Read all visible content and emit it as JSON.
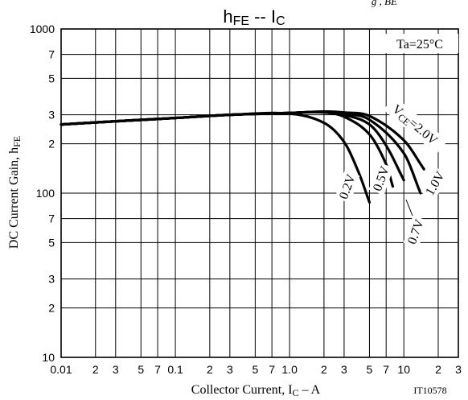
{
  "chart_data": {
    "type": "line",
    "title_main": "h",
    "title_main_sub": "FE",
    "title_sep": " -- ",
    "title_main2": "I",
    "title_main2_sub": "C",
    "title_overflow": "g , BE",
    "xlabel_pre": "Collector Current, I",
    "xlabel_sub": "C",
    "xlabel_post": "  –  A",
    "ylabel_pre": "DC Current Gain, h",
    "ylabel_sub": "FE",
    "figure_id": "IT10578",
    "condition": "Ta=25°C",
    "x_scale": "log",
    "y_scale": "log",
    "xlim": [
      0.01,
      30
    ],
    "ylim": [
      10,
      1000
    ],
    "grid": true,
    "x_tick_labels": [
      {
        "v": 0.01,
        "t": "0.01"
      },
      {
        "v": 0.02,
        "t": "2"
      },
      {
        "v": 0.03,
        "t": "3"
      },
      {
        "v": 0.05,
        "t": "5"
      },
      {
        "v": 0.07,
        "t": "7"
      },
      {
        "v": 0.1,
        "t": "0.1"
      },
      {
        "v": 0.2,
        "t": "2"
      },
      {
        "v": 0.3,
        "t": "3"
      },
      {
        "v": 0.5,
        "t": "5"
      },
      {
        "v": 0.7,
        "t": "7"
      },
      {
        "v": 1,
        "t": "1.0"
      },
      {
        "v": 2,
        "t": "2"
      },
      {
        "v": 3,
        "t": "3"
      },
      {
        "v": 5,
        "t": "5"
      },
      {
        "v": 7,
        "t": "7"
      },
      {
        "v": 10,
        "t": "10"
      },
      {
        "v": 20,
        "t": "2"
      },
      {
        "v": 30,
        "t": "3"
      }
    ],
    "y_tick_labels": [
      {
        "v": 10,
        "t": "10"
      },
      {
        "v": 20,
        "t": "2"
      },
      {
        "v": 30,
        "t": "3"
      },
      {
        "v": 50,
        "t": "5"
      },
      {
        "v": 70,
        "t": "7"
      },
      {
        "v": 100,
        "t": "100"
      },
      {
        "v": 200,
        "t": "2"
      },
      {
        "v": 300,
        "t": "3"
      },
      {
        "v": 500,
        "t": "5"
      },
      {
        "v": 700,
        "t": "7"
      },
      {
        "v": 1000,
        "t": "1000"
      }
    ],
    "series": [
      {
        "name": "0.2V",
        "x": [
          0.01,
          0.03,
          0.1,
          0.3,
          1,
          2,
          3,
          4,
          5
        ],
        "y": [
          262,
          274,
          287,
          300,
          305,
          268,
          205,
          135,
          88
        ]
      },
      {
        "name": "0.5V",
        "x": [
          0.01,
          0.03,
          0.1,
          0.3,
          1,
          2,
          3,
          5,
          7,
          8
        ],
        "y": [
          262,
          274,
          287,
          300,
          308,
          310,
          292,
          228,
          150,
          110
        ]
      },
      {
        "name": "0.7V",
        "x": [
          0.01,
          0.03,
          0.1,
          0.3,
          1,
          2,
          3,
          5,
          7,
          10
        ],
        "y": [
          262,
          274,
          287,
          300,
          308,
          312,
          300,
          262,
          195,
          120
        ]
      },
      {
        "name": "1.0V",
        "x": [
          0.01,
          0.03,
          0.1,
          0.3,
          1,
          2,
          3,
          5,
          10,
          14
        ],
        "y": [
          262,
          274,
          287,
          300,
          308,
          313,
          305,
          280,
          175,
          100
        ]
      },
      {
        "name": "2.0V",
        "x": [
          0.01,
          0.03,
          0.1,
          0.3,
          1,
          2,
          3,
          5,
          10,
          15
        ],
        "y": [
          262,
          274,
          287,
          300,
          308,
          314,
          310,
          295,
          210,
          140
        ]
      }
    ],
    "series_label_prefix": "V",
    "series_label_prefix_sub": "CE",
    "series_label_prefix_eq": "=",
    "series_labels": [
      {
        "series": "0.2V",
        "t": "0.2V"
      },
      {
        "series": "0.5V",
        "t": "0.5V"
      },
      {
        "series": "0.7V",
        "t": "0.7V"
      },
      {
        "series": "1.0V",
        "t": "1.0V"
      },
      {
        "series": "2.0V",
        "t": "2.0V"
      }
    ]
  }
}
